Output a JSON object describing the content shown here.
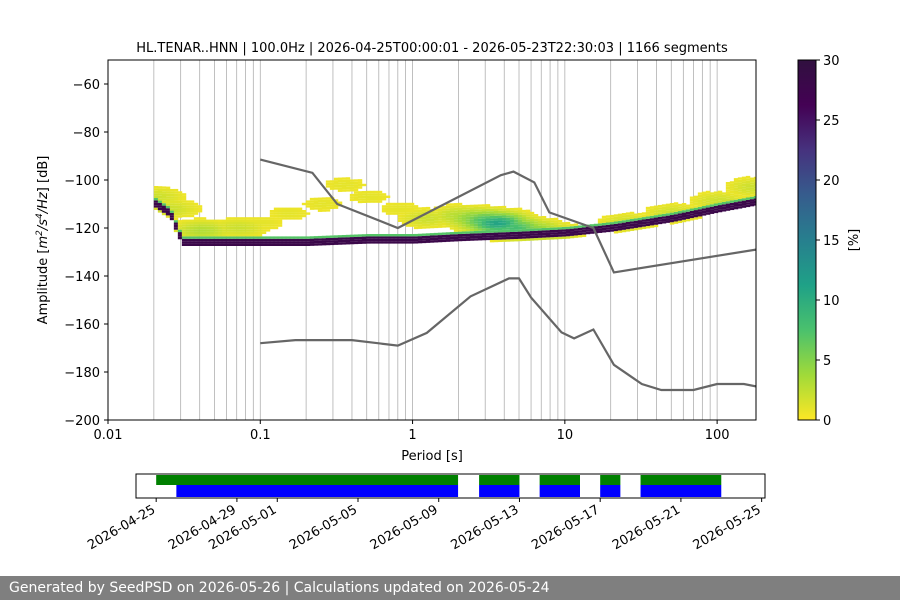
{
  "chart_data": [
    {
      "type": "heatmap",
      "title": "HL.TENAR..HNN | 100.0Hz | 2026-04-25T00:00:01 - 2026-05-23T22:30:03 | 1166 segments",
      "xlabel": "Period [s]",
      "ylabel_parts": [
        "Amplitude [",
        "m",
        "2",
        "/",
        "s",
        "4",
        "/",
        "Hz",
        "] [dB]"
      ],
      "x_scale": "log",
      "xlim": [
        0.01,
        180
      ],
      "ylim": [
        -200,
        -50
      ],
      "x_ticks": [
        {
          "value": 0.01,
          "label": "0.01"
        },
        {
          "value": 0.1,
          "label": "0.1"
        },
        {
          "value": 1,
          "label": "1"
        },
        {
          "value": 10,
          "label": "10"
        },
        {
          "value": 100,
          "label": "100"
        }
      ],
      "y_ticks": [
        {
          "value": -60,
          "label": "−60"
        },
        {
          "value": -80,
          "label": "−80"
        },
        {
          "value": -100,
          "label": "−100"
        },
        {
          "value": -120,
          "label": "−120"
        },
        {
          "value": -140,
          "label": "−140"
        },
        {
          "value": -160,
          "label": "−160"
        },
        {
          "value": -180,
          "label": "−180"
        },
        {
          "value": -200,
          "label": "−200"
        }
      ],
      "grid": "vertical minor lines at each decade subdivision",
      "colormap": "viridis_r",
      "colorbar": {
        "label": "[%]",
        "range": [
          0,
          30
        ],
        "ticks": [
          {
            "value": 0,
            "label": "0"
          },
          {
            "value": 5,
            "label": "5"
          },
          {
            "value": 10,
            "label": "10"
          },
          {
            "value": 15,
            "label": "15"
          },
          {
            "value": 20,
            "label": "20"
          },
          {
            "value": 25,
            "label": "25"
          },
          {
            "value": 30,
            "label": "30"
          }
        ]
      },
      "mode_curve": [
        [
          0.02,
          -110
        ],
        [
          0.025,
          -114
        ],
        [
          0.03,
          -126
        ],
        [
          0.05,
          -126
        ],
        [
          0.1,
          -126
        ],
        [
          0.2,
          -126
        ],
        [
          0.5,
          -125
        ],
        [
          1,
          -125
        ],
        [
          2,
          -124
        ],
        [
          5,
          -123
        ],
        [
          10,
          -122
        ],
        [
          20,
          -120
        ],
        [
          50,
          -116
        ],
        [
          100,
          -112
        ],
        [
          180,
          -109
        ]
      ],
      "density_clusters": [
        {
          "period": 0.02,
          "amplitude": -107,
          "percent": 2
        },
        {
          "period": 0.025,
          "amplitude": -112,
          "percent": 2
        },
        {
          "period": 0.04,
          "amplitude": -121,
          "percent": 3
        },
        {
          "period": 0.07,
          "amplitude": -120,
          "percent": 2
        },
        {
          "period": 0.1,
          "amplitude": -118,
          "percent": 1
        },
        {
          "period": 0.15,
          "amplitude": -114,
          "percent": 1
        },
        {
          "period": 0.25,
          "amplitude": -110,
          "percent": 1
        },
        {
          "period": 0.35,
          "amplitude": -102,
          "percent": 1
        },
        {
          "period": 0.5,
          "amplitude": -107,
          "percent": 1
        },
        {
          "period": 0.8,
          "amplitude": -112,
          "percent": 1
        },
        {
          "period": 1.2,
          "amplitude": -116,
          "percent": 2
        },
        {
          "period": 2,
          "amplitude": -115,
          "percent": 3
        },
        {
          "period": 2.5,
          "amplitude": -116,
          "percent": 5
        },
        {
          "period": 3,
          "amplitude": -117,
          "percent": 8
        },
        {
          "period": 3.5,
          "amplitude": -118,
          "percent": 11
        },
        {
          "period": 4.5,
          "amplitude": -120,
          "percent": 8
        },
        {
          "period": 6,
          "amplitude": -121,
          "percent": 5
        },
        {
          "period": 8,
          "amplitude": -122,
          "percent": 3
        },
        {
          "period": 25,
          "amplitude": -118,
          "percent": 2
        },
        {
          "period": 50,
          "amplitude": -114,
          "percent": 2
        },
        {
          "period": 100,
          "amplitude": -109,
          "percent": 2
        },
        {
          "period": 170,
          "amplitude": -103,
          "percent": 2
        }
      ],
      "reference_curves": [
        {
          "points": [
            [
              0.1,
              -91.5
            ],
            [
              0.22,
              -97
            ],
            [
              0.32,
              -110
            ],
            [
              0.8,
              -120
            ],
            [
              3.8,
              -98
            ],
            [
              4.6,
              -96.5
            ],
            [
              6.3,
              -101
            ],
            [
              7.9,
              -113.5
            ],
            [
              15.4,
              -120
            ],
            [
              21,
              -138.5
            ],
            [
              180,
              -129
            ]
          ]
        },
        {
          "points": [
            [
              0.1,
              -168
            ],
            [
              0.17,
              -166.7
            ],
            [
              0.4,
              -166.7
            ],
            [
              0.8,
              -169
            ],
            [
              1.24,
              -163.7
            ],
            [
              2.4,
              -148.5
            ],
            [
              4.3,
              -141
            ],
            [
              5,
              -141
            ],
            [
              6,
              -149
            ],
            [
              9.5,
              -163.5
            ],
            [
              11.5,
              -166
            ],
            [
              15.4,
              -162.3
            ],
            [
              21,
              -177
            ],
            [
              32,
              -185
            ],
            [
              43,
              -187.5
            ],
            [
              70,
              -187.5
            ],
            [
              100,
              -185
            ],
            [
              150,
              -185
            ],
            [
              180,
              -186
            ]
          ]
        }
      ]
    },
    {
      "type": "timeline",
      "x_ticks": [
        "2026-04-25",
        "2026-04-29",
        "2026-05-01",
        "2026-05-05",
        "2026-05-09",
        "2026-05-13",
        "2026-05-17",
        "2026-05-21",
        "2026-05-25"
      ],
      "xlim": [
        "2026-04-24T00:00",
        "2026-05-25T04:00"
      ],
      "green_segments": [
        [
          "2026-04-25T00:00",
          "2026-05-09T23:00"
        ],
        [
          "2026-05-11T00:00",
          "2026-05-13T00:00"
        ],
        [
          "2026-05-14T00:00",
          "2026-05-16T00:00"
        ],
        [
          "2026-05-17T00:00",
          "2026-05-18T00:00"
        ],
        [
          "2026-05-19T00:00",
          "2026-05-23T00:00"
        ]
      ],
      "blue_segments": [
        [
          "2026-04-26T00:00",
          "2026-05-09T23:00"
        ],
        [
          "2026-05-11T00:00",
          "2026-05-13T00:00"
        ],
        [
          "2026-05-14T00:00",
          "2026-05-16T00:00"
        ],
        [
          "2026-05-17T00:00",
          "2026-05-18T00:00"
        ],
        [
          "2026-05-19T00:00",
          "2026-05-23T00:00"
        ]
      ],
      "green_color": "#008000",
      "blue_color": "#0000ff"
    }
  ],
  "footer": {
    "text": "Generated by SeedPSD on 2026-05-26 | Calculations updated on 2026-05-24",
    "background": "#7f7f7f"
  }
}
